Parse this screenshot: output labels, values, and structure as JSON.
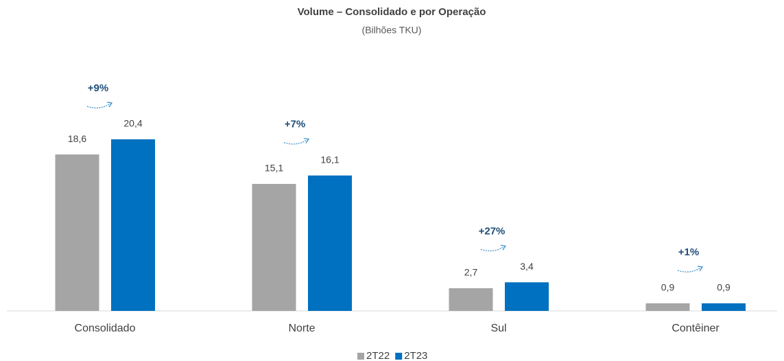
{
  "chart_data": {
    "type": "bar",
    "title": "Volume – Consolidado e por Operação",
    "subtitle": "(Bilhões TKU)",
    "categories": [
      "Consolidado",
      "Norte",
      "Sul",
      "Contêiner"
    ],
    "series": [
      {
        "name": "2T22",
        "color": "#a5a5a5",
        "values": [
          18.6,
          15.1,
          2.7,
          0.9
        ],
        "value_labels": [
          "18,6",
          "15,1",
          "2,7",
          "0,9"
        ]
      },
      {
        "name": "2T23",
        "color": "#0070c0",
        "values": [
          20.4,
          16.1,
          3.4,
          0.9
        ],
        "value_labels": [
          "20,4",
          "16,1",
          "3,4",
          "0,9"
        ]
      }
    ],
    "annotations": [
      "+9%",
      "+7%",
      "+27%",
      "+1%"
    ],
    "legend": "bottom"
  }
}
